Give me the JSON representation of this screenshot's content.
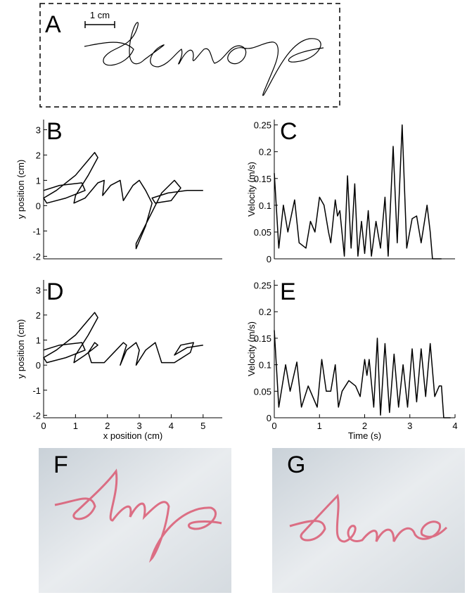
{
  "panel_labels": [
    "A",
    "B",
    "C",
    "D",
    "E",
    "F",
    "G"
  ],
  "scale_bar": "1 cm",
  "chart_data": [
    {
      "type": "line",
      "ylabel": "y position (cm)",
      "x": [
        0,
        0.5,
        1.2,
        1.3,
        0.7,
        0.1,
        0,
        0.4,
        1.0,
        1.6,
        1.7,
        1.4,
        1.0,
        0.95,
        1.3,
        1.7,
        1.9,
        1.85,
        2.1,
        2.4,
        2.45,
        2.5,
        2.8,
        3.0,
        3.2,
        3.4,
        3.2,
        2.9,
        2.9,
        3.3,
        3.7,
        4.1,
        4.3,
        4.0,
        3.5,
        3.4,
        3.9,
        4.5,
        5.0
      ],
      "values": [
        0.6,
        0.8,
        0.9,
        0.6,
        0.3,
        0.1,
        0.3,
        0.6,
        1.2,
        2.1,
        1.9,
        1.2,
        0.4,
        0.1,
        0.3,
        0.9,
        1.0,
        0.4,
        0.8,
        1.0,
        0.6,
        0.2,
        0.8,
        1.0,
        0.6,
        0.1,
        -0.8,
        -1.7,
        -1.5,
        -0.5,
        0.5,
        1.0,
        0.7,
        0.2,
        0.1,
        0.3,
        0.5,
        0.6,
        0.6
      ],
      "xlim": [
        0,
        5.6
      ],
      "ylim": [
        -2.1,
        3.4
      ],
      "yticks": [
        -2,
        -1,
        0,
        1,
        2,
        3
      ]
    },
    {
      "type": "line",
      "ylabel": "Velocity (m/s)",
      "x": [
        0,
        0.1,
        0.2,
        0.3,
        0.45,
        0.55,
        0.7,
        0.8,
        0.9,
        1.0,
        1.1,
        1.2,
        1.25,
        1.35,
        1.4,
        1.45,
        1.55,
        1.62,
        1.7,
        1.78,
        1.85,
        1.93,
        2.0,
        2.08,
        2.15,
        2.25,
        2.35,
        2.45,
        2.52,
        2.63,
        2.72,
        2.83,
        2.93,
        3.05,
        3.15,
        3.25,
        3.38,
        3.45,
        3.5,
        3.7
      ],
      "values": [
        0.16,
        0.02,
        0.1,
        0.05,
        0.11,
        0.03,
        0.02,
        0.07,
        0.05,
        0.115,
        0.1,
        0.05,
        0.03,
        0.11,
        0.08,
        0.09,
        0.005,
        0.155,
        0.02,
        0.14,
        0.005,
        0.07,
        0.01,
        0.09,
        0.005,
        0.07,
        0.02,
        0.115,
        0.005,
        0.21,
        0.03,
        0.25,
        0.02,
        0.075,
        0.08,
        0.03,
        0.1,
        0.05,
        0,
        0
      ],
      "xlim": [
        0,
        4
      ],
      "ylim": [
        0,
        0.26
      ],
      "yticks": [
        0,
        0.05,
        0.1,
        0.15,
        0.2,
        0.25
      ]
    },
    {
      "type": "line",
      "ylabel": "y position (cm)",
      "xlabel": "x position (cm)",
      "x": [
        0,
        0.5,
        1.2,
        1.3,
        0.7,
        0.1,
        0,
        0.4,
        1.0,
        1.6,
        1.7,
        1.4,
        1.0,
        0.95,
        1.3,
        1.7,
        1.6,
        1.4,
        1.5,
        1.9,
        2.2,
        2.5,
        2.6,
        2.4,
        2.6,
        2.9,
        3.0,
        2.9,
        3.2,
        3.5,
        3.6,
        3.7,
        4.1,
        4.6,
        4.7,
        4.3,
        4.1,
        4.5,
        5.0
      ],
      "values": [
        0.6,
        0.8,
        0.9,
        0.6,
        0.3,
        0.1,
        0.3,
        0.6,
        1.2,
        2.1,
        1.9,
        1.2,
        0.4,
        0.1,
        0.4,
        0.8,
        0.9,
        0.5,
        0.1,
        0.1,
        0.5,
        0.9,
        0.8,
        0.0,
        0.6,
        0.9,
        0.6,
        0.0,
        0.6,
        0.9,
        0.5,
        0.1,
        0.1,
        0.5,
        0.9,
        0.8,
        0.4,
        0.7,
        0.8
      ],
      "xlim": [
        0,
        5.6
      ],
      "ylim": [
        -2.1,
        3.4
      ],
      "xticks": [
        0,
        1,
        2,
        3,
        4,
        5
      ],
      "yticks": [
        -2,
        -1,
        0,
        1,
        2,
        3
      ]
    },
    {
      "type": "line",
      "ylabel": "Velocity (m/s)",
      "xlabel": "Time (s)",
      "x": [
        0,
        0.1,
        0.25,
        0.35,
        0.5,
        0.6,
        0.75,
        0.85,
        0.95,
        1.05,
        1.15,
        1.25,
        1.35,
        1.42,
        1.5,
        1.65,
        1.8,
        1.9,
        2.0,
        2.05,
        2.1,
        2.2,
        2.28,
        2.35,
        2.45,
        2.55,
        2.65,
        2.75,
        2.85,
        2.95,
        3.05,
        3.15,
        3.25,
        3.35,
        3.45,
        3.55,
        3.65,
        3.7,
        3.75,
        3.9
      ],
      "values": [
        0.165,
        0.02,
        0.1,
        0.05,
        0.105,
        0.02,
        0.06,
        0.04,
        0.02,
        0.11,
        0.05,
        0.05,
        0.1,
        0.02,
        0.05,
        0.07,
        0.06,
        0.04,
        0.11,
        0.08,
        0.11,
        0.02,
        0.15,
        0.005,
        0.14,
        0.01,
        0.12,
        0.02,
        0.1,
        0.02,
        0.13,
        0.03,
        0.13,
        0.04,
        0.14,
        0.04,
        0.06,
        0.06,
        0,
        0
      ],
      "xlim": [
        0,
        4
      ],
      "ylim": [
        0,
        0.26
      ],
      "xticks": [
        0,
        1,
        2,
        3,
        4
      ],
      "yticks": [
        0,
        0.05,
        0.1,
        0.15,
        0.2,
        0.25
      ]
    }
  ]
}
